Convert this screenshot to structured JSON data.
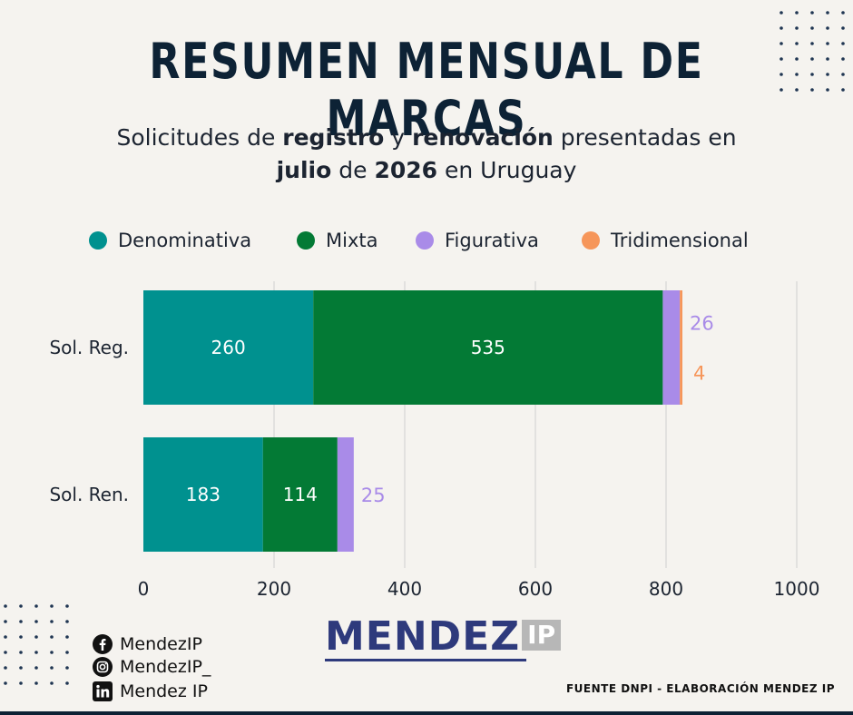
{
  "title": "RESUMEN MENSUAL DE MARCAS",
  "subtitle": {
    "p1": "Solicitudes de ",
    "b1": "registro",
    "p2": " y ",
    "b2": "renovación",
    "p3": " presentadas en ",
    "b3": "julio",
    "p4": " de ",
    "b4": "2026",
    "p5": " en Uruguay"
  },
  "colors": {
    "Denominativa": "#00918f",
    "Mixta": "#037a35",
    "Figurativa": "#a98be8",
    "Tridimensional": "#f6965a",
    "grid": "#cfcfcf",
    "axis_text": "#1c2431"
  },
  "chart_data": {
    "type": "bar",
    "orientation": "horizontal",
    "stacked": true,
    "categories": [
      "Sol. Reg.",
      "Sol. Ren."
    ],
    "series": [
      {
        "name": "Denominativa",
        "values": [
          260,
          183
        ]
      },
      {
        "name": "Mixta",
        "values": [
          535,
          114
        ]
      },
      {
        "name": "Figurativa",
        "values": [
          26,
          25
        ]
      },
      {
        "name": "Tridimensional",
        "values": [
          4,
          0
        ]
      }
    ],
    "xlim": [
      0,
      1000
    ],
    "xticks": [
      "0",
      "200",
      "400",
      "600",
      "800",
      "1000"
    ],
    "grid": true,
    "legend_position": "top"
  },
  "social": [
    {
      "icon": "facebook-icon",
      "label": "MendezIP"
    },
    {
      "icon": "instagram-icon",
      "label": "MendezIP_"
    },
    {
      "icon": "linkedin-icon",
      "label": "Mendez IP"
    }
  ],
  "logo": {
    "main": "MENDEZ",
    "box": "IP"
  },
  "source": "FUENTE DNPI - ELABORACIÓN MENDEZ IP"
}
